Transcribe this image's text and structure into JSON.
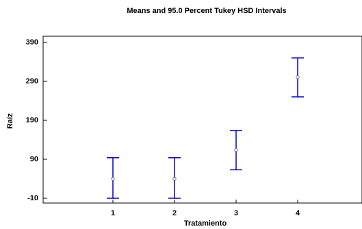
{
  "chart_data": {
    "type": "scatter",
    "title": "Means and 95.0 Percent Tukey HSD Intervals",
    "xlabel": "Tratamiento",
    "ylabel": "Raíz",
    "categories": [
      "1",
      "2",
      "3",
      "4"
    ],
    "means": [
      40,
      40,
      114,
      301
    ],
    "lower": [
      -10,
      -10,
      63,
      250
    ],
    "upper": [
      94,
      94,
      164,
      350
    ],
    "y_ticks": [
      "390",
      "290",
      "190",
      "90",
      "-10"
    ],
    "ylim": [
      -20,
      410
    ],
    "grid": false,
    "colors": {
      "interval": "#0000cc",
      "mean_marker": "#555555",
      "axis": "#000000"
    }
  }
}
